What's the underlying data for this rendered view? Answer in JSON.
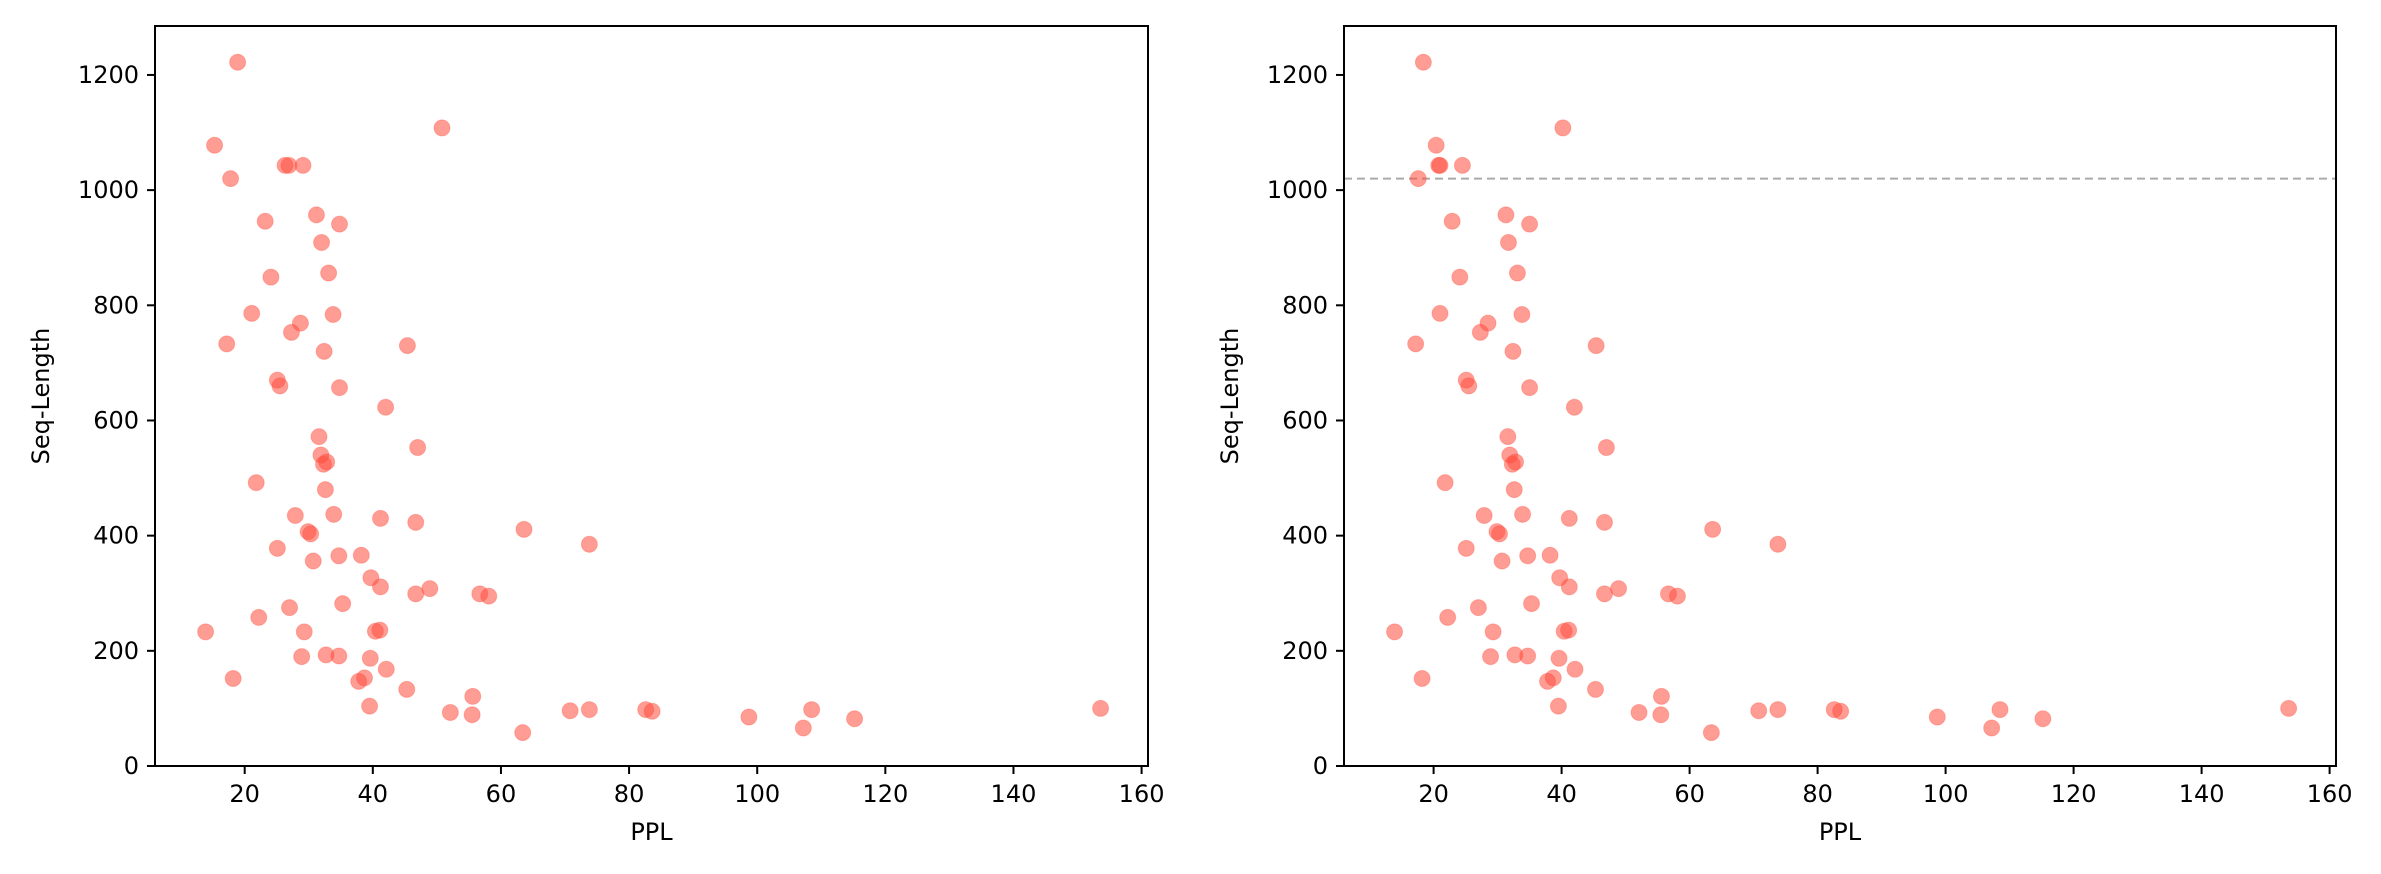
{
  "chart_data": [
    {
      "type": "scatter",
      "title": "",
      "xlabel": "PPL",
      "ylabel": "Seq-Length",
      "xlim": [
        6,
        161
      ],
      "ylim": [
        0,
        1285
      ],
      "xticks": [
        20,
        40,
        60,
        80,
        100,
        120,
        140,
        160
      ],
      "yticks": [
        0,
        200,
        400,
        600,
        800,
        1000,
        1200
      ],
      "grid": false,
      "marker_color": "#ff4d3d",
      "marker_opacity": 0.55,
      "x": [
        18.9,
        15.3,
        17.8,
        26.3,
        26.9,
        29.1,
        50.8,
        23.2,
        31.2,
        34.8,
        32.0,
        33.1,
        24.1,
        21.1,
        28.7,
        27.3,
        33.8,
        17.2,
        45.4,
        32.4,
        25.1,
        25.5,
        34.8,
        42.0,
        31.6,
        47.0,
        31.9,
        32.8,
        32.3,
        21.8,
        32.6,
        27.9,
        33.9,
        41.2,
        29.9,
        30.3,
        46.7,
        63.6,
        73.8,
        25.1,
        38.2,
        34.7,
        30.7,
        39.7,
        41.2,
        48.9,
        56.7,
        58.1,
        46.7,
        35.3,
        27.0,
        22.2,
        29.3,
        41.1,
        40.4,
        13.9,
        32.7,
        28.9,
        34.7,
        39.6,
        42.1,
        18.2,
        38.7,
        37.8,
        45.3,
        55.6,
        39.5,
        52.1,
        55.5,
        70.8,
        73.8,
        82.6,
        83.6,
        98.7,
        108.5,
        115.2,
        107.2,
        153.6,
        63.4
      ],
      "y": [
        1222,
        1078,
        1020,
        1043,
        1043,
        1043,
        1108,
        946,
        957,
        941,
        909,
        856,
        849,
        786,
        769,
        753,
        784,
        733,
        730,
        720,
        670,
        660,
        657,
        623,
        572,
        553,
        540,
        528,
        524,
        492,
        480,
        435,
        437,
        430,
        407,
        403,
        423,
        411,
        385,
        378,
        366,
        365,
        356,
        327,
        311,
        308,
        299,
        295,
        299,
        282,
        275,
        258,
        233,
        236,
        234,
        233,
        193,
        190,
        191,
        187,
        168,
        152,
        153,
        147,
        133,
        121,
        104,
        93,
        89,
        96,
        98,
        98,
        95,
        85,
        98,
        82,
        66,
        100,
        58
      ]
    },
    {
      "type": "scatter",
      "title": "",
      "xlabel": "PPL",
      "ylabel": "Seq-Length",
      "xlim": [
        6,
        161
      ],
      "ylim": [
        0,
        1285
      ],
      "xticks": [
        20,
        40,
        60,
        80,
        100,
        120,
        140,
        160
      ],
      "yticks": [
        0,
        200,
        400,
        600,
        800,
        1000,
        1200
      ],
      "grid": false,
      "marker_color": "#ff4d3d",
      "marker_opacity": 0.55,
      "reference_line": {
        "orientation": "horizontal",
        "y": 1020,
        "style": "dashed",
        "color": "#aaaaaa"
      },
      "x": [
        18.4,
        20.4,
        17.6,
        20.8,
        21.0,
        24.5,
        40.2,
        22.9,
        31.3,
        35.0,
        31.7,
        33.1,
        24.1,
        21.0,
        28.5,
        27.3,
        33.8,
        17.2,
        45.4,
        32.4,
        25.1,
        25.5,
        35.0,
        42.0,
        31.6,
        47.0,
        31.9,
        32.8,
        32.3,
        21.8,
        32.6,
        27.9,
        33.9,
        41.2,
        29.9,
        30.3,
        46.7,
        63.6,
        73.8,
        25.1,
        38.2,
        34.7,
        30.7,
        39.7,
        41.2,
        48.9,
        56.7,
        58.1,
        46.7,
        35.3,
        27.0,
        22.2,
        29.3,
        41.1,
        40.4,
        13.9,
        32.7,
        28.9,
        34.7,
        39.6,
        42.1,
        18.2,
        38.7,
        37.8,
        45.3,
        55.6,
        39.5,
        52.1,
        55.5,
        70.8,
        73.8,
        82.6,
        83.6,
        98.7,
        108.5,
        115.2,
        107.2,
        153.6,
        63.4
      ],
      "y": [
        1222,
        1078,
        1020,
        1043,
        1043,
        1043,
        1108,
        946,
        957,
        941,
        909,
        856,
        849,
        786,
        769,
        753,
        784,
        733,
        730,
        720,
        670,
        660,
        657,
        623,
        572,
        553,
        540,
        528,
        524,
        492,
        480,
        435,
        437,
        430,
        407,
        403,
        423,
        411,
        385,
        378,
        366,
        365,
        356,
        327,
        311,
        308,
        299,
        295,
        299,
        282,
        275,
        258,
        233,
        236,
        234,
        233,
        193,
        190,
        191,
        187,
        168,
        152,
        153,
        147,
        133,
        121,
        104,
        93,
        89,
        96,
        98,
        98,
        95,
        85,
        98,
        82,
        66,
        100,
        58
      ]
    }
  ]
}
